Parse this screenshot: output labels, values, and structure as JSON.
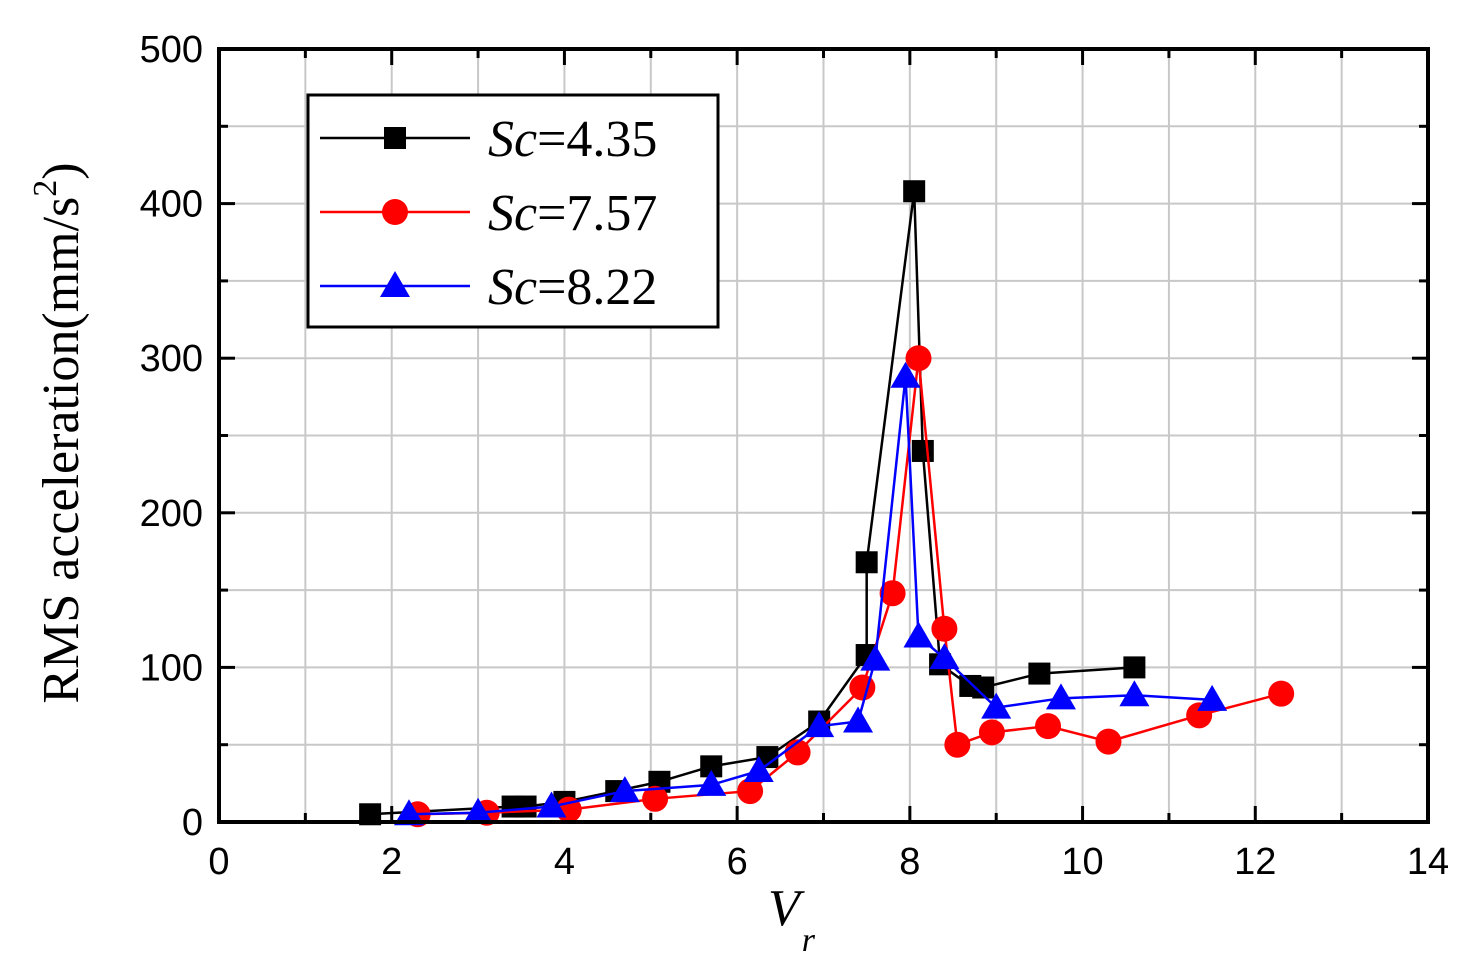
{
  "chart_data": {
    "type": "line",
    "xlabel": "V",
    "xlabel_sub": "r",
    "ylabel": "RMS acceleration(mm/s",
    "ylabel_sup": "2",
    "ylabel_close": ")",
    "xlim": [
      0,
      14
    ],
    "ylim": [
      0,
      500
    ],
    "xticks": [
      0,
      2,
      4,
      6,
      8,
      10,
      12,
      14
    ],
    "yticks": [
      0,
      100,
      200,
      300,
      400,
      500
    ],
    "grid": true,
    "legend_position": "top-left",
    "series": [
      {
        "name": "Sc=4.35",
        "name_var": "Sc",
        "name_value": "=4.35",
        "color": "#000000",
        "marker": "square",
        "x": [
          1.75,
          3.4,
          3.55,
          4.0,
          4.6,
          5.1,
          5.7,
          6.35,
          6.95,
          7.5,
          7.5,
          8.05,
          8.15,
          8.35,
          8.7,
          8.85,
          9.5,
          10.6
        ],
        "y": [
          5,
          10,
          10,
          13,
          20,
          26,
          36,
          42,
          65,
          108,
          168,
          408,
          240,
          102,
          88,
          87,
          96,
          100
        ]
      },
      {
        "name": "Sc=7.57",
        "name_var": "Sc",
        "name_value": "=7.57",
        "color": "#ff0000",
        "marker": "circle",
        "x": [
          2.3,
          3.1,
          4.05,
          5.05,
          6.15,
          6.7,
          7.45,
          7.8,
          8.1,
          8.4,
          8.55,
          8.95,
          9.6,
          10.3,
          11.35,
          12.3
        ],
        "y": [
          5,
          6,
          8,
          15,
          20,
          45,
          87,
          148,
          300,
          125,
          50,
          58,
          62,
          52,
          69,
          83
        ]
      },
      {
        "name": "Sc=8.22",
        "name_var": "Sc",
        "name_value": "=8.22",
        "color": "#0000ff",
        "marker": "triangle",
        "x": [
          2.2,
          3.0,
          3.85,
          4.7,
          5.7,
          6.25,
          6.95,
          7.4,
          7.6,
          7.95,
          8.1,
          8.4,
          9.0,
          9.75,
          10.6,
          11.5
        ],
        "y": [
          5,
          6,
          10,
          20,
          24,
          33,
          62,
          65,
          105,
          288,
          120,
          106,
          74,
          80,
          82,
          79
        ]
      }
    ]
  }
}
